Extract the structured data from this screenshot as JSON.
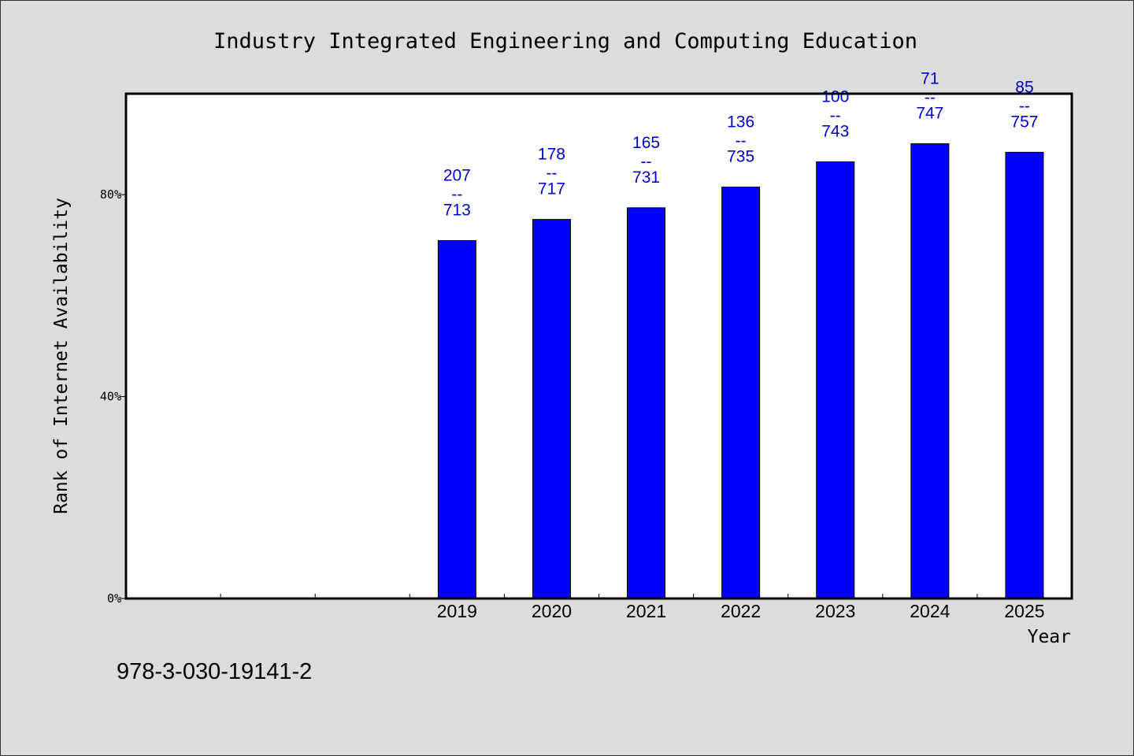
{
  "chart_data": {
    "type": "bar",
    "title": "Industry Integrated Engineering and Computing Education",
    "xlabel": "Year",
    "ylabel": "Rank of Internet Availability",
    "ylim": [
      0,
      100
    ],
    "yticks": [
      {
        "value": 0,
        "label": "0%"
      },
      {
        "value": 40,
        "label": "40%"
      },
      {
        "value": 80,
        "label": "80%"
      }
    ],
    "categories": [
      "",
      "",
      "",
      "2019",
      "2020",
      "2021",
      "2022",
      "2023",
      "2024",
      "2025"
    ],
    "values": [
      null,
      null,
      null,
      70.9,
      75.1,
      77.4,
      81.5,
      86.5,
      90.1,
      88.4
    ],
    "bar_labels": [
      {
        "top": "207",
        "sep": "--",
        "bottom": "713"
      },
      {
        "top": "178",
        "sep": "--",
        "bottom": "717"
      },
      {
        "top": "165",
        "sep": "--",
        "bottom": "731"
      },
      {
        "top": "136",
        "sep": "--",
        "bottom": "735"
      },
      {
        "top": "100",
        "sep": "--",
        "bottom": "743"
      },
      {
        "top": "71",
        "sep": "--",
        "bottom": "747"
      },
      {
        "top": "85",
        "sep": "--",
        "bottom": "757"
      }
    ],
    "bar_color": "#0000ff",
    "label_color": "#0000cc",
    "grid": false,
    "legend": "none"
  },
  "footnote": "978-3-030-19141-2"
}
